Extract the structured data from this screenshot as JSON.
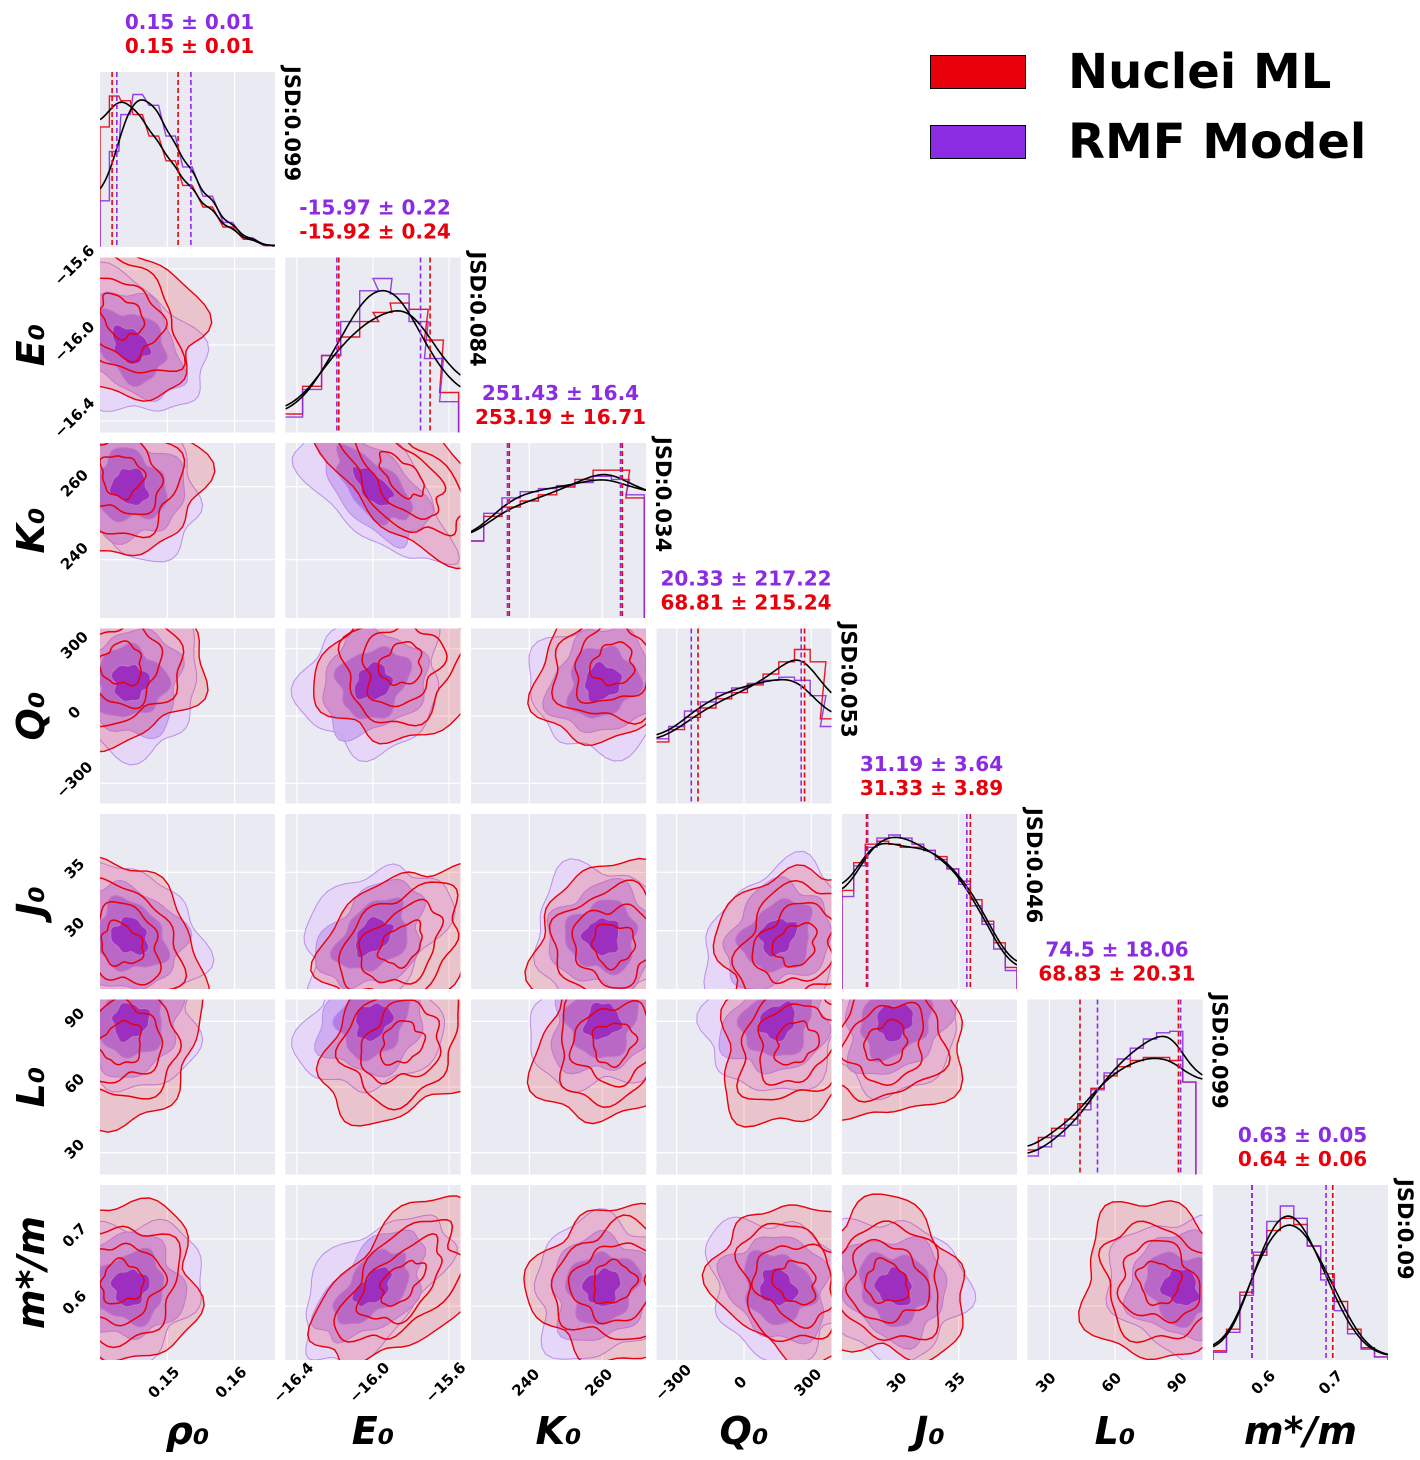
{
  "legend": {
    "items": [
      {
        "label": "Nuclei ML",
        "color": "#e8000b"
      },
      {
        "label": "RMF Model",
        "color": "#8b2be2"
      }
    ]
  },
  "colors": {
    "ml": "#e8000b",
    "rmf": "#8b2be2",
    "kde": "#000000",
    "panel_bg": "#eaeaf2",
    "grid": "#ffffff"
  },
  "chart_data": {
    "type": "corner",
    "params": [
      {
        "label": "ρ₀",
        "range": [
          0.14,
          0.166
        ],
        "ticks": [
          {
            "v": 0.15,
            "t": "0.15"
          },
          {
            "v": 0.16,
            "t": "0.16"
          }
        ],
        "stats": {
          "rmf": "0.15 ± 0.01",
          "ml": "0.15 ± 0.01"
        },
        "jsd": "JSD:0.099",
        "ci_lines": {
          "rmf": [
            0.1425,
            0.1535
          ],
          "ml": [
            0.1418,
            0.1516
          ]
        },
        "hist_x": [
          0.1407,
          0.1421,
          0.1438,
          0.1456,
          0.148,
          0.1505,
          0.153,
          0.156,
          0.159,
          0.162,
          0.165
        ],
        "hist_rmf": [
          0.3,
          0.62,
          0.86,
          0.99,
          0.92,
          0.72,
          0.52,
          0.33,
          0.16,
          0.06,
          0.01
        ],
        "hist_ml": [
          0.78,
          0.98,
          0.95,
          0.86,
          0.72,
          0.56,
          0.4,
          0.26,
          0.13,
          0.05,
          0.01
        ],
        "mode_rmf": 0.1445,
        "mode_ml": 0.1432
      },
      {
        "label": "E₀",
        "range": [
          -16.46,
          -15.54
        ],
        "ticks": [
          {
            "v": -16.4,
            "t": "−16.4"
          },
          {
            "v": -16.0,
            "t": "−16.0"
          },
          {
            "v": -15.6,
            "t": "−15.6"
          }
        ],
        "stats": {
          "rmf": "-15.97 ± 0.22",
          "ml": "-15.92 ± 0.24"
        },
        "jsd": "JSD:0.084",
        "ci_lines": {
          "rmf": [
            -16.19,
            -15.75
          ],
          "ml": [
            -16.18,
            -15.7
          ]
        },
        "hist_x": [
          -16.42,
          -16.32,
          -16.22,
          -16.12,
          -16.02,
          -15.95,
          -15.86,
          -15.76,
          -15.68,
          -15.6
        ],
        "hist_rmf": [
          0.1,
          0.28,
          0.5,
          0.72,
          0.92,
          1.0,
          0.9,
          0.72,
          0.48,
          0.2
        ],
        "hist_ml": [
          0.12,
          0.3,
          0.5,
          0.62,
          0.72,
          0.78,
          0.84,
          0.8,
          0.6,
          0.26
        ],
        "mode_rmf": -16.0,
        "mode_ml": -15.85
      },
      {
        "label": "K₀",
        "range": [
          224,
          272
        ],
        "ticks": [
          {
            "v": 240,
            "t": "240"
          },
          {
            "v": 260,
            "t": "260"
          }
        ],
        "stats": {
          "rmf": "251.43 ± 16.4",
          "ml": "253.19 ± 16.71"
        },
        "jsd": "JSD:0.034",
        "ci_lines": {
          "rmf": [
            234.0,
            265.0
          ],
          "ml": [
            234.5,
            265.5
          ]
        },
        "hist_x": [
          225,
          230,
          235,
          240,
          245,
          250,
          255,
          260,
          265,
          269
        ],
        "hist_rmf": [
          0.5,
          0.68,
          0.78,
          0.82,
          0.84,
          0.86,
          0.88,
          0.92,
          0.9,
          0.8
        ],
        "hist_ml": [
          0.5,
          0.66,
          0.72,
          0.76,
          0.8,
          0.85,
          0.9,
          0.96,
          0.96,
          0.78
        ],
        "mode_rmf": 260,
        "mode_ml": 263
      },
      {
        "label": "Q₀",
        "range": [
          -390,
          390
        ],
        "ticks": [
          {
            "v": -300,
            "t": "−300"
          },
          {
            "v": 0,
            "t": "0"
          },
          {
            "v": 300,
            "t": "300"
          }
        ],
        "stats": {
          "rmf": "20.33 ± 217.22",
          "ml": "68.81 ± 215.24"
        },
        "jsd": "JSD:0.053",
        "ci_lines": {
          "rmf": [
            -235,
            255
          ],
          "ml": [
            -205,
            270
          ]
        },
        "hist_x": [
          -370,
          -300,
          -230,
          -160,
          -90,
          -20,
          50,
          120,
          190,
          260,
          330,
          375
        ],
        "hist_rmf": [
          0.42,
          0.5,
          0.6,
          0.66,
          0.72,
          0.75,
          0.78,
          0.8,
          0.82,
          0.8,
          0.7,
          0.5
        ],
        "hist_ml": [
          0.4,
          0.48,
          0.56,
          0.62,
          0.68,
          0.72,
          0.77,
          0.84,
          0.92,
          1.0,
          0.92,
          0.55
        ],
        "mode_rmf": 150,
        "mode_ml": 230
      },
      {
        "label": "J₀",
        "range": [
          25.0,
          40.0
        ],
        "ticks": [
          {
            "v": 30,
            "t": "30"
          },
          {
            "v": 35,
            "t": "35"
          }
        ],
        "stats": {
          "rmf": "31.19 ± 3.64",
          "ml": "31.33 ± 3.89"
        },
        "jsd": "JSD:0.046",
        "ci_lines": {
          "rmf": [
            27.2,
            35.7
          ],
          "ml": [
            27.1,
            36.0
          ]
        },
        "hist_x": [
          25.5,
          26.5,
          27.5,
          28.5,
          29.5,
          30.5,
          31.5,
          32.5,
          33.5,
          34.5,
          35.5,
          36.5,
          37.5,
          38.5,
          39.5
        ],
        "hist_rmf": [
          0.6,
          0.8,
          0.92,
          0.98,
          1.0,
          0.98,
          0.94,
          0.9,
          0.84,
          0.78,
          0.68,
          0.54,
          0.42,
          0.26,
          0.12
        ],
        "hist_ml": [
          0.64,
          0.82,
          0.94,
          0.96,
          0.94,
          0.92,
          0.92,
          0.9,
          0.86,
          0.78,
          0.7,
          0.58,
          0.44,
          0.3,
          0.14
        ],
        "mode_rmf": 29.5,
        "mode_ml": 28.8
      },
      {
        "label": "L₀",
        "range": [
          20,
          100
        ],
        "ticks": [
          {
            "v": 30,
            "t": "30"
          },
          {
            "v": 60,
            "t": "60"
          },
          {
            "v": 90,
            "t": "90"
          }
        ],
        "stats": {
          "rmf": "74.5 ± 18.06",
          "ml": "68.83 ± 20.31"
        },
        "jsd": "JSD:0.099",
        "ci_lines": {
          "rmf": [
            52,
            90
          ],
          "ml": [
            44,
            89
          ]
        },
        "hist_x": [
          22,
          28,
          34,
          40,
          46,
          52,
          58,
          64,
          70,
          76,
          82,
          88,
          94
        ],
        "hist_rmf": [
          0.12,
          0.18,
          0.25,
          0.32,
          0.42,
          0.55,
          0.66,
          0.75,
          0.82,
          0.88,
          0.92,
          0.93,
          0.6
        ],
        "hist_ml": [
          0.16,
          0.24,
          0.3,
          0.36,
          0.46,
          0.56,
          0.64,
          0.7,
          0.74,
          0.76,
          0.76,
          0.74,
          0.6
        ],
        "mode_rmf": 90,
        "mode_ml": 80
      },
      {
        "label": "m*/m",
        "range": [
          0.52,
          0.78
        ],
        "ticks": [
          {
            "v": 0.6,
            "t": "0.6"
          },
          {
            "v": 0.7,
            "t": "0.7"
          }
        ],
        "stats": {
          "rmf": "0.63 ± 0.05",
          "ml": "0.64 ± 0.06"
        },
        "jsd": "JSD:0.09",
        "ci_lines": {
          "rmf": [
            0.578,
            0.688
          ],
          "ml": [
            0.578,
            0.698
          ]
        },
        "hist_x": [
          0.53,
          0.55,
          0.57,
          0.59,
          0.61,
          0.63,
          0.65,
          0.67,
          0.69,
          0.71,
          0.73,
          0.75,
          0.77
        ],
        "hist_rmf": [
          0.05,
          0.18,
          0.42,
          0.7,
          0.9,
          1.0,
          0.92,
          0.74,
          0.52,
          0.32,
          0.17,
          0.07,
          0.02
        ],
        "hist_ml": [
          0.06,
          0.2,
          0.44,
          0.68,
          0.84,
          0.92,
          0.88,
          0.74,
          0.56,
          0.38,
          0.2,
          0.08,
          0.02
        ],
        "mode_rmf": 0.628,
        "mode_ml": 0.635
      }
    ],
    "correlations": {
      "1,0": -0.3,
      "2,0": -0.1,
      "2,1": -0.65,
      "3,0": 0.0,
      "3,1": 0.15,
      "3,2": 0.1,
      "4,0": -0.15,
      "4,1": 0.35,
      "4,2": 0.0,
      "4,3": 0.2,
      "5,0": 0.1,
      "5,1": 0.2,
      "5,2": 0.1,
      "5,3": 0.2,
      "5,4": 0.15,
      "6,0": 0.05,
      "6,1": 0.55,
      "6,2": 0.1,
      "6,3": -0.15,
      "6,4": -0.1,
      "6,5": -0.1
    }
  }
}
